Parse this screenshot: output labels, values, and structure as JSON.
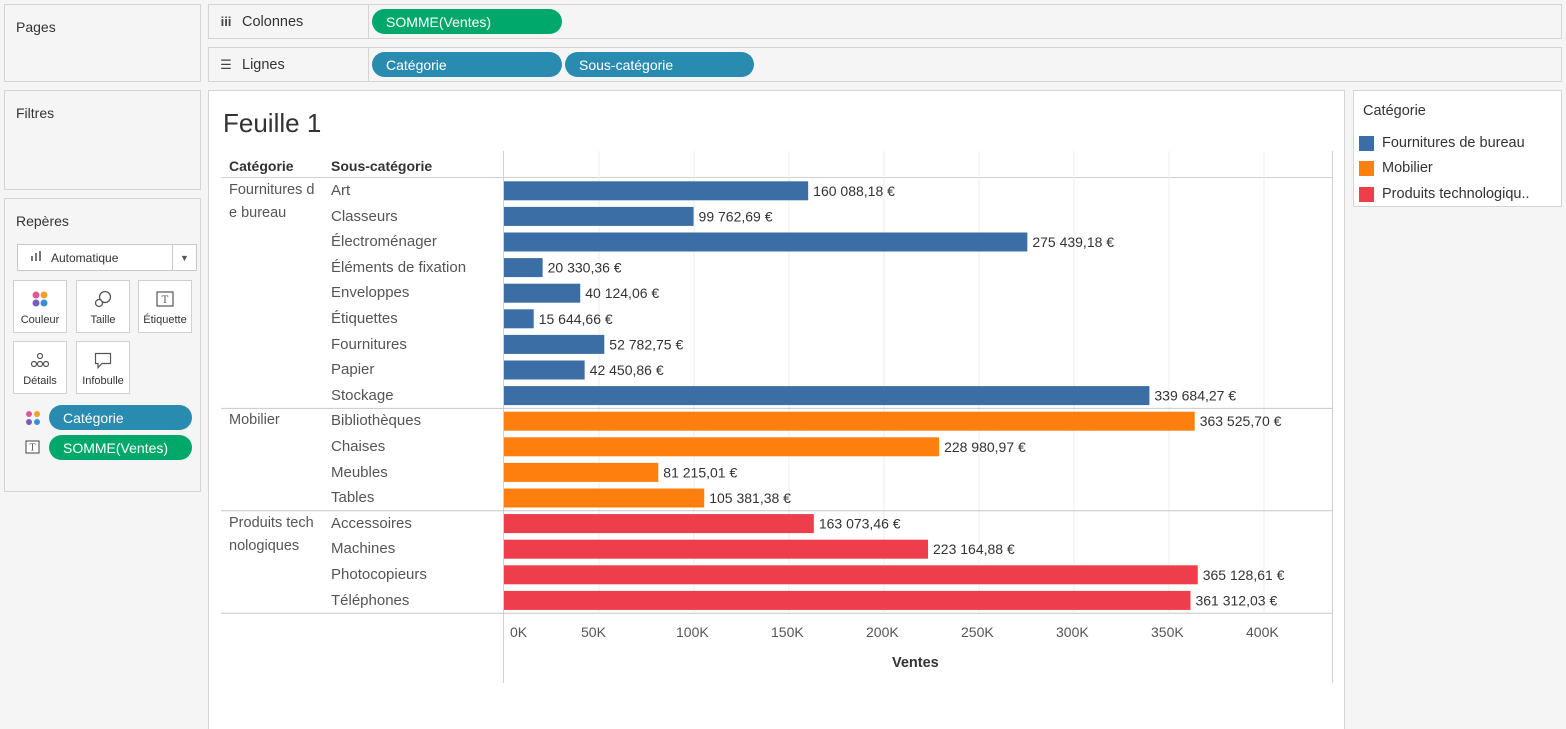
{
  "shelves": {
    "pages_label": "Pages",
    "filters_label": "Filtres",
    "columns": {
      "icon": "columns-icon",
      "label": "Colonnes",
      "pills": [
        "SOMME(Ventes)"
      ]
    },
    "rows": {
      "icon": "rows-list-icon",
      "label": "Lignes",
      "pills": [
        "Catégorie",
        "Sous-catégorie"
      ]
    }
  },
  "marks": {
    "title": "Repères",
    "mark_type": "Automatique",
    "buttons": [
      {
        "label": "Couleur",
        "icon": "color-dots-icon"
      },
      {
        "label": "Taille",
        "icon": "size-icon"
      },
      {
        "label": "Étiquette",
        "icon": "label-icon"
      },
      {
        "label": "Détails",
        "icon": "details-icon"
      },
      {
        "label": "Infobulle",
        "icon": "tooltip-icon"
      }
    ],
    "fields": [
      {
        "label": "Catégorie",
        "icon": "color-dots-icon",
        "color": "#2a8bb0"
      },
      {
        "label": "SOMME(Ventes)",
        "icon": "label-icon",
        "color": "#00a86b"
      }
    ]
  },
  "view": {
    "sheet_title": "Feuille 1",
    "col_header_category": "Catégorie",
    "col_header_subcategory": "Sous-catégorie"
  },
  "legend": {
    "title": "Catégorie",
    "items": [
      {
        "label": "Fournitures de bureau",
        "color": "#3a6ea5"
      },
      {
        "label": "Mobilier",
        "color": "#ff7f0e"
      },
      {
        "label": "Produits technologiqu..",
        "color": "#ee3e4b"
      }
    ]
  },
  "chart_data": {
    "type": "bar",
    "orientation": "horizontal",
    "xlabel": "Ventes",
    "xlim": [
      0,
      420000
    ],
    "x_ticks": [
      "0K",
      "50K",
      "100K",
      "150K",
      "200K",
      "250K",
      "300K",
      "350K",
      "400K"
    ],
    "grid": true,
    "groups": [
      {
        "category": "Fournitures de bureau",
        "color": "#3a6ea5",
        "subcategories": [
          "Art",
          "Classeurs",
          "Électroménager",
          "Éléments de fixation",
          "Enveloppes",
          "Étiquettes",
          "Fournitures",
          "Papier",
          "Stockage"
        ],
        "values": [
          160088.18,
          99762.69,
          275439.18,
          20330.36,
          40124.06,
          15644.66,
          52782.75,
          42450.86,
          339684.27
        ],
        "labels": [
          "160 088,18 €",
          "99 762,69 €",
          "275 439,18 €",
          "20 330,36 €",
          "40 124,06 €",
          "15 644,66 €",
          "52 782,75 €",
          "42 450,86 €",
          "339 684,27 €"
        ]
      },
      {
        "category": "Mobilier",
        "color": "#ff7f0e",
        "subcategories": [
          "Bibliothèques",
          "Chaises",
          "Meubles",
          "Tables"
        ],
        "values": [
          363525.7,
          228980.97,
          81215.01,
          105381.38
        ],
        "labels": [
          "363 525,70 €",
          "228 980,97 €",
          "81 215,01 €",
          "105 381,38 €"
        ]
      },
      {
        "category": "Produits technologiques",
        "color": "#ee3e4b",
        "subcategories": [
          "Accessoires",
          "Machines",
          "Photocopieurs",
          "Téléphones"
        ],
        "values": [
          163073.46,
          223164.88,
          365128.61,
          361312.03
        ],
        "labels": [
          "163 073,46 €",
          "223 164,88 €",
          "365 128,61 €",
          "361 312,03 €"
        ]
      }
    ]
  }
}
